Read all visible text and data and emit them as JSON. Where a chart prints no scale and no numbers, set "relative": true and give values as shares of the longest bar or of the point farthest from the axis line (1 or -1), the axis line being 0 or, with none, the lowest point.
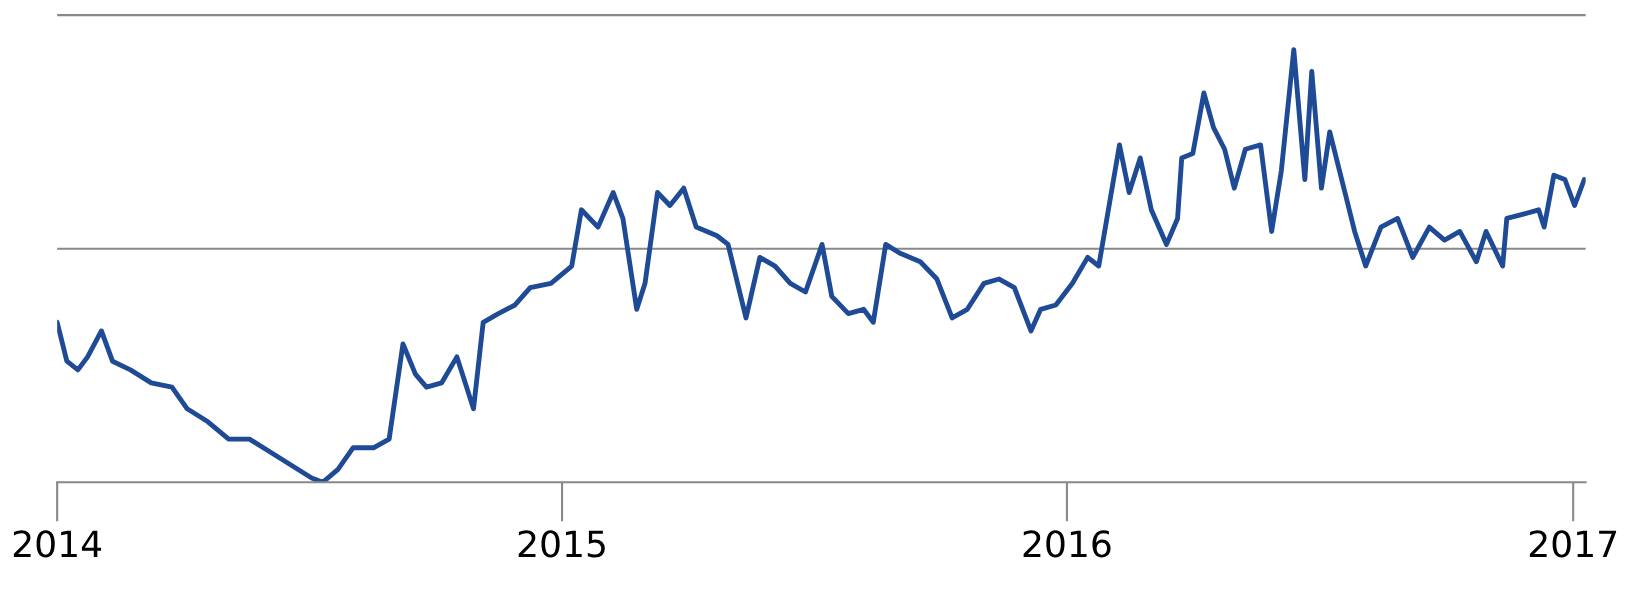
{
  "chart_data": {
    "type": "line",
    "relative": true,
    "color": "#1f4a96",
    "ref_lines": [
      {
        "axis": "y",
        "value": 0.54,
        "color": "#888888"
      },
      {
        "axis": "y",
        "value": 1.08,
        "color": "#888888"
      }
    ],
    "xlim": [
      "2014-01-01",
      "2017-01-10"
    ],
    "xticks": [
      {
        "value": "2014-01-01",
        "label": "2014"
      },
      {
        "value": "2015-01-01",
        "label": "2015"
      },
      {
        "value": "2016-01-01",
        "label": "2016"
      },
      {
        "value": "2017-01-01",
        "label": "2017"
      }
    ],
    "x": [
      "2014-01-01",
      "2014-01-08",
      "2014-01-16",
      "2014-01-23",
      "2014-02-02",
      "2014-02-10",
      "2014-02-23",
      "2014-03-10",
      "2014-03-25",
      "2014-04-05",
      "2014-04-20",
      "2014-05-05",
      "2014-05-20",
      "2014-06-04",
      "2014-06-19",
      "2014-07-04",
      "2014-07-12",
      "2014-07-23",
      "2014-08-03",
      "2014-08-18",
      "2014-08-29",
      "2014-09-08",
      "2014-09-17",
      "2014-09-25",
      "2014-10-06",
      "2014-10-17",
      "2014-10-29",
      "2014-11-05",
      "2014-11-16",
      "2014-11-28",
      "2014-12-09",
      "2014-12-24",
      "2015-01-08",
      "2015-01-15",
      "2015-01-27",
      "2015-02-07",
      "2015-02-14",
      "2015-02-24",
      "2015-03-02",
      "2015-03-11",
      "2015-03-20",
      "2015-03-30",
      "2015-04-08",
      "2015-04-23",
      "2015-05-01",
      "2015-05-14",
      "2015-05-24",
      "2015-06-04",
      "2015-06-15",
      "2015-06-26",
      "2015-07-08",
      "2015-07-15",
      "2015-07-27",
      "2015-08-07",
      "2015-08-14",
      "2015-08-23",
      "2015-09-02",
      "2015-09-17",
      "2015-09-29",
      "2015-10-10",
      "2015-10-21",
      "2015-11-02",
      "2015-11-13",
      "2015-11-24",
      "2015-12-06",
      "2015-12-13",
      "2015-12-24",
      "2016-01-05",
      "2016-01-16",
      "2016-01-24",
      "2016-02-08",
      "2016-02-15",
      "2016-02-23",
      "2016-03-02",
      "2016-03-13",
      "2016-03-21",
      "2016-03-24",
      "2016-04-01",
      "2016-04-09",
      "2016-04-16",
      "2016-04-24",
      "2016-05-01",
      "2016-05-09",
      "2016-05-20",
      "2016-05-28",
      "2016-06-04",
      "2016-06-13",
      "2016-06-21",
      "2016-06-26",
      "2016-07-03",
      "2016-07-09",
      "2016-07-20",
      "2016-07-27",
      "2016-08-04",
      "2016-08-15",
      "2016-08-27",
      "2016-09-07",
      "2016-09-19",
      "2016-09-30",
      "2016-10-11",
      "2016-10-23",
      "2016-10-30",
      "2016-11-11",
      "2016-11-14",
      "2016-11-26",
      "2016-12-07",
      "2016-12-11",
      "2016-12-18",
      "2016-12-26",
      "2017-01-02",
      "2017-01-09"
    ],
    "values": [
      0.37,
      0.28,
      0.26,
      0.29,
      0.35,
      0.28,
      0.26,
      0.23,
      0.22,
      0.17,
      0.14,
      0.1,
      0.1,
      0.07,
      0.04,
      0.01,
      0.0,
      0.03,
      0.08,
      0.08,
      0.1,
      0.32,
      0.25,
      0.22,
      0.23,
      0.29,
      0.17,
      0.37,
      0.39,
      0.41,
      0.45,
      0.46,
      0.5,
      0.63,
      0.59,
      0.67,
      0.61,
      0.4,
      0.46,
      0.67,
      0.64,
      0.68,
      0.59,
      0.57,
      0.55,
      0.38,
      0.52,
      0.5,
      0.46,
      0.44,
      0.55,
      0.43,
      0.39,
      0.4,
      0.37,
      0.55,
      0.53,
      0.51,
      0.47,
      0.38,
      0.4,
      0.46,
      0.47,
      0.45,
      0.35,
      0.4,
      0.41,
      0.46,
      0.52,
      0.5,
      0.78,
      0.67,
      0.75,
      0.63,
      0.55,
      0.61,
      0.75,
      0.76,
      0.9,
      0.82,
      0.77,
      0.68,
      0.77,
      0.78,
      0.58,
      0.72,
      1.0,
      0.7,
      0.95,
      0.68,
      0.81,
      0.67,
      0.58,
      0.5,
      0.59,
      0.61,
      0.52,
      0.59,
      0.56,
      0.58,
      0.51,
      0.58,
      0.5,
      0.61,
      0.62,
      0.63,
      0.59,
      0.71,
      0.7,
      0.64,
      0.7
    ]
  }
}
